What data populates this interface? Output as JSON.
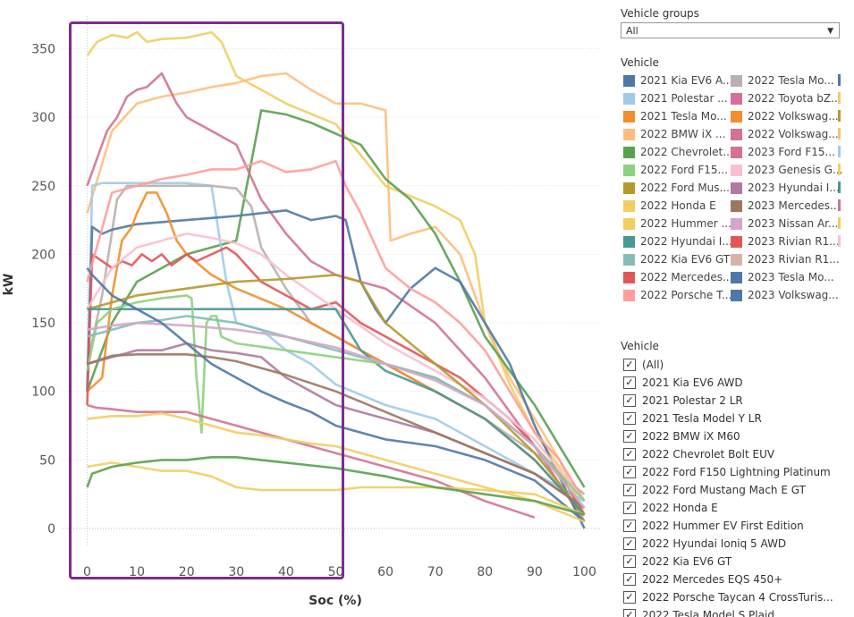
{
  "panel": {
    "groups_title": "Vehicle groups",
    "groups_value": "All",
    "legend_title": "Vehicle",
    "filter_title": "Vehicle"
  },
  "legend": [
    {
      "label": "2021 Kia EV6 A...",
      "color": "#4e79a7"
    },
    {
      "label": "2021 Polestar ...",
      "color": "#a0cbe8"
    },
    {
      "label": "2021 Tesla Mo...",
      "color": "#f28e2b"
    },
    {
      "label": "2022 BMW iX ...",
      "color": "#ffbe7d"
    },
    {
      "label": "2022 Chevrolet...",
      "color": "#59a14f"
    },
    {
      "label": "2022 Ford F15...",
      "color": "#8cd17d"
    },
    {
      "label": "2022 Ford Mus...",
      "color": "#b6992d"
    },
    {
      "label": "2022 Honda E",
      "color": "#f1ce63"
    },
    {
      "label": "2022 Hummer ...",
      "color": "#f1ce63"
    },
    {
      "label": "2022 Hyundai I...",
      "color": "#499894"
    },
    {
      "label": "2022 Kia EV6 GT",
      "color": "#86bcb6"
    },
    {
      "label": "2022 Mercedes...",
      "color": "#e15759"
    },
    {
      "label": "2022 Porsche T...",
      "color": "#ff9d9a"
    },
    {
      "label": "2022 Tesla Mo...",
      "color": "#bab0ac"
    },
    {
      "label": "2022 Toyota bZ...",
      "color": "#d37295"
    },
    {
      "label": "2022 Volkswag...",
      "color": "#f28e2b"
    },
    {
      "label": "2022 Volkswag...",
      "color": "#d37295"
    },
    {
      "label": "2023 Ford F15...",
      "color": "#d37295"
    },
    {
      "label": "2023 Genesis G...",
      "color": "#fabfd2"
    },
    {
      "label": "2023 Hyundai I...",
      "color": "#b07aa1"
    },
    {
      "label": "2023 Mercedes...",
      "color": "#9d7660"
    },
    {
      "label": "2023 Nissan Ar...",
      "color": "#d4a6c8"
    },
    {
      "label": "2023 Rivian R1...",
      "color": "#e15759"
    },
    {
      "label": "2023 Rivian R1...",
      "color": "#d7b5a6"
    },
    {
      "label": "2023 Tesla Mo...",
      "color": "#4e79a7"
    },
    {
      "label": "2023 Volkswag...",
      "color": "#4e79a7"
    }
  ],
  "legend_col3_colors": [
    "#4e79a7",
    "#f1ce63",
    "#b6992d",
    "#ffbe7d",
    "#a0cbe8",
    "#f1ce63",
    "#499894",
    "#d37295",
    "#f1ce63",
    "#fabfd2"
  ],
  "filter": [
    "(All)",
    "2021 Kia EV6 AWD",
    "2021 Polestar 2 LR",
    "2021 Tesla Model Y LR",
    "2022 BMW iX M60",
    "2022 Chevrolet Bolt EUV",
    "2022 Ford F150 Lightning Platinum",
    "2022 Ford Mustang Mach E GT",
    "2022 Honda E",
    "2022 Hummer EV First Edition",
    "2022 Hyundai Ioniq 5 AWD",
    "2022 Kia EV6 GT",
    "2022 Mercedes EQS 450+",
    "2022 Porsche Taycan 4 CrossTuris...",
    "2022 Tesla Model S Plaid"
  ],
  "chart_data": {
    "type": "line",
    "xlabel": "Soc (%)",
    "ylabel": "kW",
    "xlim": [
      -5,
      103
    ],
    "ylim": [
      -20,
      375
    ],
    "xticks": [
      0,
      10,
      20,
      30,
      40,
      50,
      60,
      70,
      80,
      90,
      100
    ],
    "yticks": [
      0,
      50,
      100,
      150,
      200,
      250,
      300,
      350
    ],
    "grid": "horizontal dotted",
    "highlight_box": {
      "x_from": -4,
      "x_to": 52
    },
    "series": [
      {
        "color": "#f1ce63",
        "x": [
          0,
          2,
          5,
          8,
          10,
          12,
          15,
          20,
          25,
          27,
          30,
          35,
          40,
          50,
          60,
          70,
          75,
          78,
          80,
          85,
          90,
          95,
          100
        ],
        "y": [
          345,
          355,
          360,
          358,
          362,
          355,
          357,
          358,
          362,
          355,
          330,
          320,
          310,
          295,
          250,
          235,
          225,
          200,
          150,
          105,
          70,
          45,
          5
        ]
      },
      {
        "color": "#ffbe7d",
        "x": [
          0,
          5,
          10,
          15,
          20,
          25,
          30,
          35,
          40,
          45,
          50,
          55,
          60,
          61,
          65,
          70,
          75,
          80,
          85,
          90,
          95,
          100
        ],
        "y": [
          230,
          290,
          310,
          315,
          318,
          322,
          325,
          330,
          332,
          320,
          310,
          310,
          305,
          210,
          215,
          220,
          200,
          150,
          110,
          80,
          50,
          10
        ]
      },
      {
        "color": "#59a14f",
        "x": [
          0,
          5,
          10,
          20,
          30,
          35,
          40,
          45,
          50,
          55,
          60,
          65,
          70,
          75,
          80,
          90,
          100
        ],
        "y": [
          100,
          150,
          180,
          200,
          210,
          305,
          302,
          296,
          288,
          280,
          255,
          240,
          215,
          180,
          140,
          90,
          30
        ]
      },
      {
        "color": "#d37295",
        "x": [
          0,
          2,
          4,
          6,
          8,
          10,
          12,
          15,
          18,
          20,
          25,
          30,
          35,
          40,
          45,
          50,
          55,
          60,
          70,
          80,
          90,
          100
        ],
        "y": [
          250,
          270,
          290,
          300,
          315,
          320,
          322,
          332,
          310,
          300,
          290,
          280,
          240,
          215,
          195,
          185,
          180,
          175,
          150,
          110,
          60,
          5
        ]
      },
      {
        "color": "#a0cbe8",
        "x": [
          0,
          1,
          3,
          5,
          10,
          15,
          20,
          25,
          28,
          30,
          35,
          40,
          45,
          50,
          60,
          70,
          80,
          90,
          100
        ],
        "y": [
          100,
          250,
          252,
          252,
          252,
          252,
          252,
          250,
          180,
          150,
          145,
          130,
          120,
          105,
          90,
          80,
          60,
          40,
          20
        ]
      },
      {
        "color": "#bab0ac",
        "x": [
          0,
          3,
          6,
          8,
          10,
          15,
          20,
          25,
          30,
          33,
          35,
          40,
          45,
          50,
          60,
          70,
          80,
          90,
          100
        ],
        "y": [
          120,
          170,
          240,
          250,
          250,
          250,
          250,
          250,
          248,
          235,
          205,
          175,
          150,
          140,
          120,
          100,
          80,
          55,
          25
        ]
      },
      {
        "color": "#4e79a7",
        "x": [
          0,
          1,
          3,
          5,
          10,
          20,
          30,
          40,
          45,
          50,
          52,
          55,
          58,
          60,
          65,
          70,
          75,
          80,
          85,
          90,
          100
        ],
        "y": [
          100,
          220,
          215,
          218,
          222,
          225,
          228,
          232,
          225,
          228,
          225,
          180,
          160,
          150,
          175,
          190,
          180,
          150,
          120,
          75,
          0
        ]
      },
      {
        "color": "#f28e2b",
        "x": [
          0,
          3,
          5,
          7,
          9,
          10,
          12,
          14,
          16,
          18,
          20,
          25,
          30,
          40,
          50,
          60,
          70,
          80,
          90,
          100
        ],
        "y": [
          100,
          110,
          170,
          210,
          220,
          230,
          245,
          245,
          230,
          210,
          200,
          185,
          175,
          160,
          140,
          120,
          100,
          80,
          50,
          10
        ]
      },
      {
        "color": "#e15759",
        "x": [
          0,
          1,
          3,
          5,
          7,
          9,
          11,
          13,
          15,
          17,
          20,
          22,
          25,
          28,
          30,
          35,
          40,
          45,
          50,
          55,
          60,
          65,
          70,
          75,
          80,
          85,
          90,
          95,
          100
        ],
        "y": [
          90,
          200,
          195,
          190,
          195,
          192,
          200,
          195,
          200,
          192,
          200,
          195,
          200,
          205,
          200,
          180,
          170,
          160,
          165,
          150,
          140,
          130,
          120,
          110,
          95,
          80,
          60,
          40,
          10
        ]
      },
      {
        "color": "#ff9d9a",
        "x": [
          0,
          5,
          10,
          15,
          20,
          25,
          30,
          35,
          40,
          45,
          50,
          52,
          55,
          60,
          65,
          70,
          75,
          80,
          85,
          90,
          95,
          100
        ],
        "y": [
          180,
          245,
          250,
          255,
          258,
          262,
          262,
          268,
          260,
          262,
          268,
          250,
          230,
          190,
          175,
          165,
          150,
          130,
          100,
          70,
          50,
          20
        ]
      },
      {
        "color": "#fabfd2",
        "x": [
          0,
          5,
          10,
          15,
          20,
          25,
          30,
          35,
          40,
          50,
          60,
          70,
          80,
          90,
          100
        ],
        "y": [
          160,
          190,
          205,
          210,
          215,
          212,
          208,
          200,
          185,
          160,
          135,
          115,
          95,
          65,
          20
        ]
      },
      {
        "color": "#b6992d",
        "x": [
          0,
          5,
          10,
          20,
          30,
          40,
          50,
          55,
          60,
          70,
          80,
          90,
          100
        ],
        "y": [
          160,
          165,
          170,
          175,
          180,
          182,
          185,
          180,
          150,
          120,
          90,
          55,
          10
        ]
      },
      {
        "color": "#499894",
        "x": [
          0,
          2,
          5,
          20,
          30,
          40,
          50,
          55,
          60,
          70,
          80,
          90,
          100
        ],
        "y": [
          160,
          160,
          160,
          160,
          160,
          160,
          160,
          130,
          115,
          100,
          80,
          50,
          10
        ]
      },
      {
        "color": "#8cd17d",
        "x": [
          0,
          2,
          5,
          10,
          15,
          20,
          21,
          22,
          23,
          24,
          25,
          26,
          27,
          30,
          40,
          50,
          60,
          70,
          80,
          90,
          100
        ],
        "y": [
          115,
          150,
          160,
          165,
          168,
          170,
          168,
          110,
          70,
          150,
          155,
          155,
          140,
          135,
          130,
          125,
          120,
          110,
          90,
          60,
          20
        ]
      },
      {
        "color": "#b07aa1",
        "x": [
          0,
          5,
          10,
          15,
          20,
          25,
          30,
          35,
          40,
          45,
          50,
          55,
          60,
          70,
          80,
          90,
          100
        ],
        "y": [
          120,
          125,
          130,
          130,
          135,
          130,
          128,
          125,
          110,
          100,
          90,
          85,
          80,
          70,
          55,
          40,
          15
        ]
      },
      {
        "color": "#9d7660",
        "x": [
          0,
          5,
          10,
          15,
          20,
          25,
          30,
          40,
          50,
          60,
          70,
          80,
          90,
          100
        ],
        "y": [
          120,
          126,
          127,
          127,
          127,
          125,
          122,
          112,
          100,
          85,
          70,
          55,
          40,
          15
        ]
      },
      {
        "color": "#86bcb6",
        "x": [
          0,
          5,
          10,
          15,
          20,
          30,
          40,
          50,
          60,
          70,
          80,
          90,
          100
        ],
        "y": [
          140,
          145,
          150,
          152,
          155,
          150,
          140,
          130,
          120,
          110,
          90,
          60,
          15
        ]
      },
      {
        "color": "#d4a6c8",
        "x": [
          0,
          5,
          10,
          20,
          30,
          40,
          50,
          60,
          70,
          80,
          90,
          100
        ],
        "y": [
          145,
          148,
          150,
          148,
          145,
          140,
          132,
          120,
          108,
          90,
          60,
          15
        ]
      },
      {
        "color": "#4e79a7",
        "x": [
          0,
          1,
          5,
          10,
          15,
          20,
          25,
          30,
          35,
          40,
          45,
          50,
          60,
          70,
          80,
          90,
          100
        ],
        "y": [
          190,
          185,
          170,
          160,
          150,
          135,
          120,
          110,
          100,
          92,
          85,
          75,
          65,
          60,
          50,
          35,
          5
        ]
      },
      {
        "color": "#d37295",
        "x": [
          0,
          2,
          5,
          10,
          15,
          20,
          25,
          30,
          35,
          40,
          45,
          50,
          60,
          70,
          80,
          90
        ],
        "y": [
          90,
          88,
          87,
          85,
          85,
          85,
          80,
          75,
          70,
          65,
          60,
          55,
          45,
          35,
          20,
          8
        ]
      },
      {
        "color": "#f1ce63",
        "x": [
          0,
          5,
          10,
          15,
          20,
          25,
          30,
          35,
          40,
          45,
          50,
          55,
          60,
          70,
          80,
          90,
          100
        ],
        "y": [
          80,
          82,
          82,
          84,
          80,
          75,
          70,
          68,
          65,
          62,
          60,
          55,
          50,
          40,
          30,
          20,
          5
        ]
      },
      {
        "color": "#f1ce63",
        "x": [
          0,
          5,
          10,
          15,
          20,
          25,
          30,
          35,
          40,
          45,
          50,
          55,
          60,
          70,
          80,
          90,
          100
        ],
        "y": [
          45,
          48,
          45,
          42,
          42,
          38,
          30,
          28,
          28,
          28,
          28,
          30,
          30,
          30,
          28,
          25,
          10
        ]
      },
      {
        "color": "#59a14f",
        "x": [
          0,
          1,
          5,
          10,
          15,
          20,
          25,
          30,
          35,
          40,
          45,
          50,
          60,
          70,
          80,
          90,
          100
        ],
        "y": [
          30,
          40,
          45,
          48,
          50,
          50,
          52,
          52,
          50,
          48,
          46,
          44,
          38,
          30,
          25,
          20,
          10
        ]
      }
    ]
  }
}
